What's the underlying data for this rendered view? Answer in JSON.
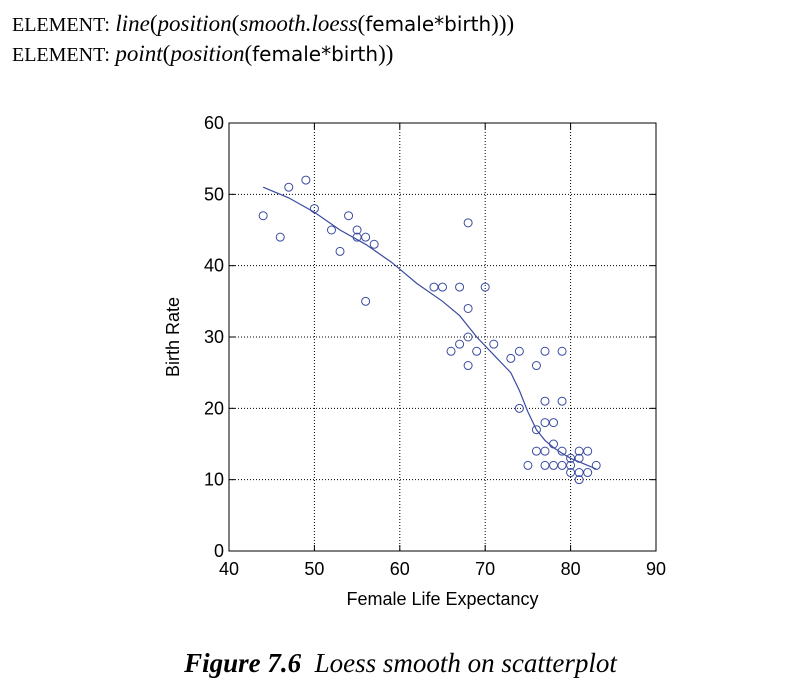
{
  "code_lines": [
    {
      "keyword": "ELEMENT:",
      "func": "line",
      "p1": "(",
      "pos": "position",
      "p2": "(",
      "smooth": "smooth.loess",
      "p3": "(",
      "expr": "female*birth",
      "close": ")))"
    },
    {
      "keyword": "ELEMENT:",
      "func": "point",
      "p1": "(",
      "pos": "position",
      "p2": "(",
      "expr": "female*birth",
      "close": "))"
    }
  ],
  "caption": {
    "label": "Figure 7.6",
    "text": "Loess smooth on scatterplot"
  },
  "colors": {
    "series": "#3a4ba0",
    "grid": "#000000",
    "axis": "#000000"
  },
  "chart_data": {
    "type": "scatter",
    "xlabel": "Female Life Expectancy",
    "ylabel": "Birth Rate",
    "xlim": [
      40,
      90
    ],
    "ylim": [
      0,
      60
    ],
    "xticks": [
      40,
      50,
      60,
      70,
      80,
      90
    ],
    "yticks": [
      0,
      10,
      20,
      30,
      40,
      50,
      60
    ],
    "grid": "dotted",
    "points": [
      {
        "x": 44,
        "y": 47
      },
      {
        "x": 46,
        "y": 44
      },
      {
        "x": 47,
        "y": 51
      },
      {
        "x": 49,
        "y": 52
      },
      {
        "x": 50,
        "y": 48
      },
      {
        "x": 52,
        "y": 45
      },
      {
        "x": 53,
        "y": 42
      },
      {
        "x": 54,
        "y": 47
      },
      {
        "x": 55,
        "y": 45
      },
      {
        "x": 55,
        "y": 44
      },
      {
        "x": 56,
        "y": 44
      },
      {
        "x": 56,
        "y": 35
      },
      {
        "x": 57,
        "y": 43
      },
      {
        "x": 64,
        "y": 37
      },
      {
        "x": 65,
        "y": 37
      },
      {
        "x": 66,
        "y": 28
      },
      {
        "x": 67,
        "y": 37
      },
      {
        "x": 67,
        "y": 29
      },
      {
        "x": 68,
        "y": 46
      },
      {
        "x": 68,
        "y": 34
      },
      {
        "x": 68,
        "y": 30
      },
      {
        "x": 68,
        "y": 26
      },
      {
        "x": 69,
        "y": 28
      },
      {
        "x": 70,
        "y": 37
      },
      {
        "x": 71,
        "y": 29
      },
      {
        "x": 73,
        "y": 27
      },
      {
        "x": 74,
        "y": 28
      },
      {
        "x": 74,
        "y": 20
      },
      {
        "x": 75,
        "y": 12
      },
      {
        "x": 76,
        "y": 26
      },
      {
        "x": 76,
        "y": 17
      },
      {
        "x": 76,
        "y": 14
      },
      {
        "x": 77,
        "y": 28
      },
      {
        "x": 77,
        "y": 21
      },
      {
        "x": 77,
        "y": 18
      },
      {
        "x": 77,
        "y": 14
      },
      {
        "x": 77,
        "y": 12
      },
      {
        "x": 78,
        "y": 18
      },
      {
        "x": 78,
        "y": 15
      },
      {
        "x": 78,
        "y": 12
      },
      {
        "x": 79,
        "y": 28
      },
      {
        "x": 79,
        "y": 21
      },
      {
        "x": 79,
        "y": 14
      },
      {
        "x": 79,
        "y": 12
      },
      {
        "x": 80,
        "y": 13
      },
      {
        "x": 80,
        "y": 12
      },
      {
        "x": 80,
        "y": 11
      },
      {
        "x": 81,
        "y": 14
      },
      {
        "x": 81,
        "y": 13
      },
      {
        "x": 81,
        "y": 11
      },
      {
        "x": 81,
        "y": 10
      },
      {
        "x": 82,
        "y": 14
      },
      {
        "x": 82,
        "y": 11
      },
      {
        "x": 83,
        "y": 12
      }
    ],
    "loess": [
      {
        "x": 44,
        "y": 51
      },
      {
        "x": 47,
        "y": 49.5
      },
      {
        "x": 50,
        "y": 47.5
      },
      {
        "x": 53,
        "y": 45
      },
      {
        "x": 56,
        "y": 43
      },
      {
        "x": 59,
        "y": 40.5
      },
      {
        "x": 62,
        "y": 37.5
      },
      {
        "x": 65,
        "y": 35
      },
      {
        "x": 67,
        "y": 33
      },
      {
        "x": 69,
        "y": 30
      },
      {
        "x": 71,
        "y": 27.5
      },
      {
        "x": 73,
        "y": 25
      },
      {
        "x": 74,
        "y": 22.5
      },
      {
        "x": 75,
        "y": 19.5
      },
      {
        "x": 76,
        "y": 17
      },
      {
        "x": 77,
        "y": 15.5
      },
      {
        "x": 78,
        "y": 14.5
      },
      {
        "x": 79,
        "y": 13.7
      },
      {
        "x": 80,
        "y": 13
      },
      {
        "x": 81,
        "y": 12.5
      },
      {
        "x": 82,
        "y": 12
      },
      {
        "x": 83,
        "y": 11.5
      }
    ]
  }
}
